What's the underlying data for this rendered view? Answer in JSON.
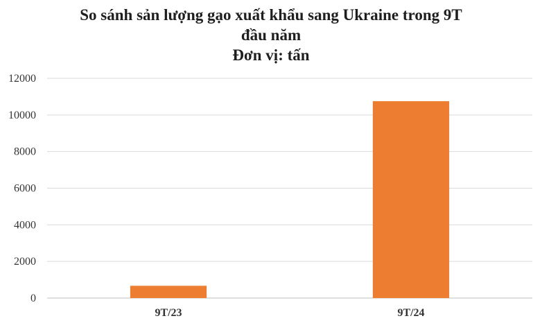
{
  "chart_data": {
    "type": "bar",
    "title_lines": [
      "So sánh sản lượng gạo xuất khẩu sang Ukraine trong 9T",
      "đầu năm",
      "Đơn vị: tấn"
    ],
    "categories": [
      "9T/23",
      "9T/24"
    ],
    "values": [
      670,
      10750
    ],
    "ylim": [
      0,
      12000
    ],
    "yticks": [
      0,
      2000,
      4000,
      6000,
      8000,
      10000,
      12000
    ],
    "xlabel": "",
    "ylabel": "",
    "grid": true,
    "colors": {
      "bar": "#ED7D31",
      "grid": "#D9D9D9",
      "axis": "#BFBFBF"
    }
  }
}
